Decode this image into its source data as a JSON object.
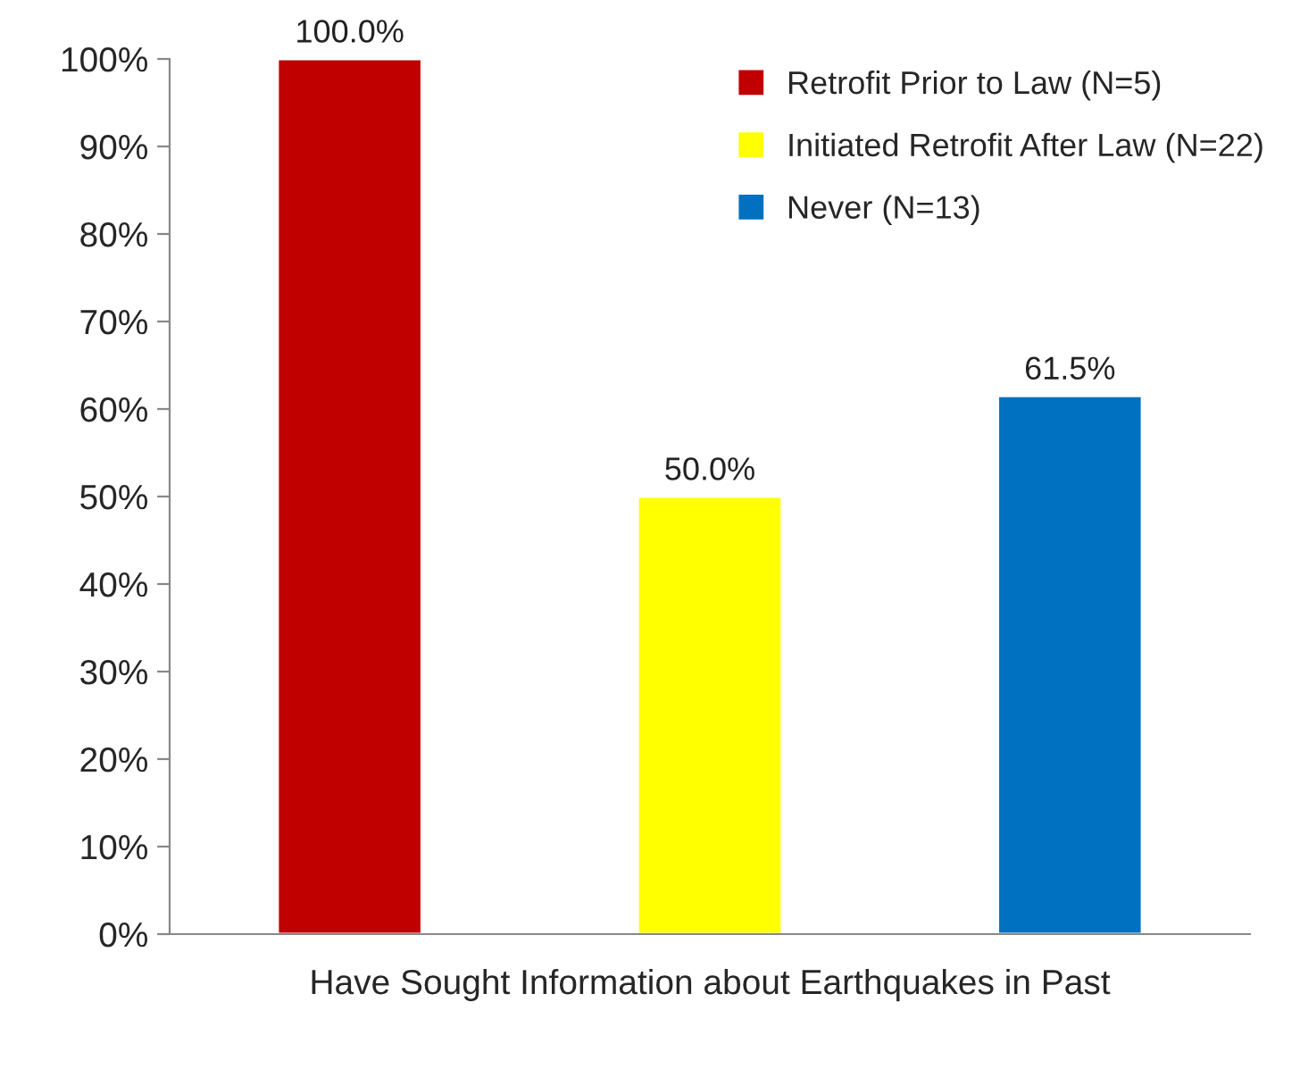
{
  "chart_data": {
    "type": "bar",
    "categories": [
      "Have Sought Information about Earthquakes in Past"
    ],
    "series": [
      {
        "name": "Retrofit Prior to Law (N=5)",
        "color": "#c00000",
        "values": [
          100.0
        ],
        "value_labels": [
          "100.0%"
        ]
      },
      {
        "name": "Initiated Retrofit After Law (N=22)",
        "color": "#ffff00",
        "values": [
          50.0
        ],
        "value_labels": [
          "50.0%"
        ]
      },
      {
        "name": "Never (N=13)",
        "color": "#0070c0",
        "values": [
          61.5
        ],
        "value_labels": [
          "61.5%"
        ]
      }
    ],
    "ylim": [
      0,
      100
    ],
    "yticks": [
      {
        "value": 0,
        "label": "0%"
      },
      {
        "value": 10,
        "label": "10%"
      },
      {
        "value": 20,
        "label": "20%"
      },
      {
        "value": 30,
        "label": "30%"
      },
      {
        "value": 40,
        "label": "40%"
      },
      {
        "value": 50,
        "label": "50%"
      },
      {
        "value": 60,
        "label": "60%"
      },
      {
        "value": 70,
        "label": "70%"
      },
      {
        "value": 80,
        "label": "80%"
      },
      {
        "value": 90,
        "label": "90%"
      },
      {
        "value": 100,
        "label": "100%"
      }
    ],
    "grid": false,
    "legend": "top right"
  }
}
